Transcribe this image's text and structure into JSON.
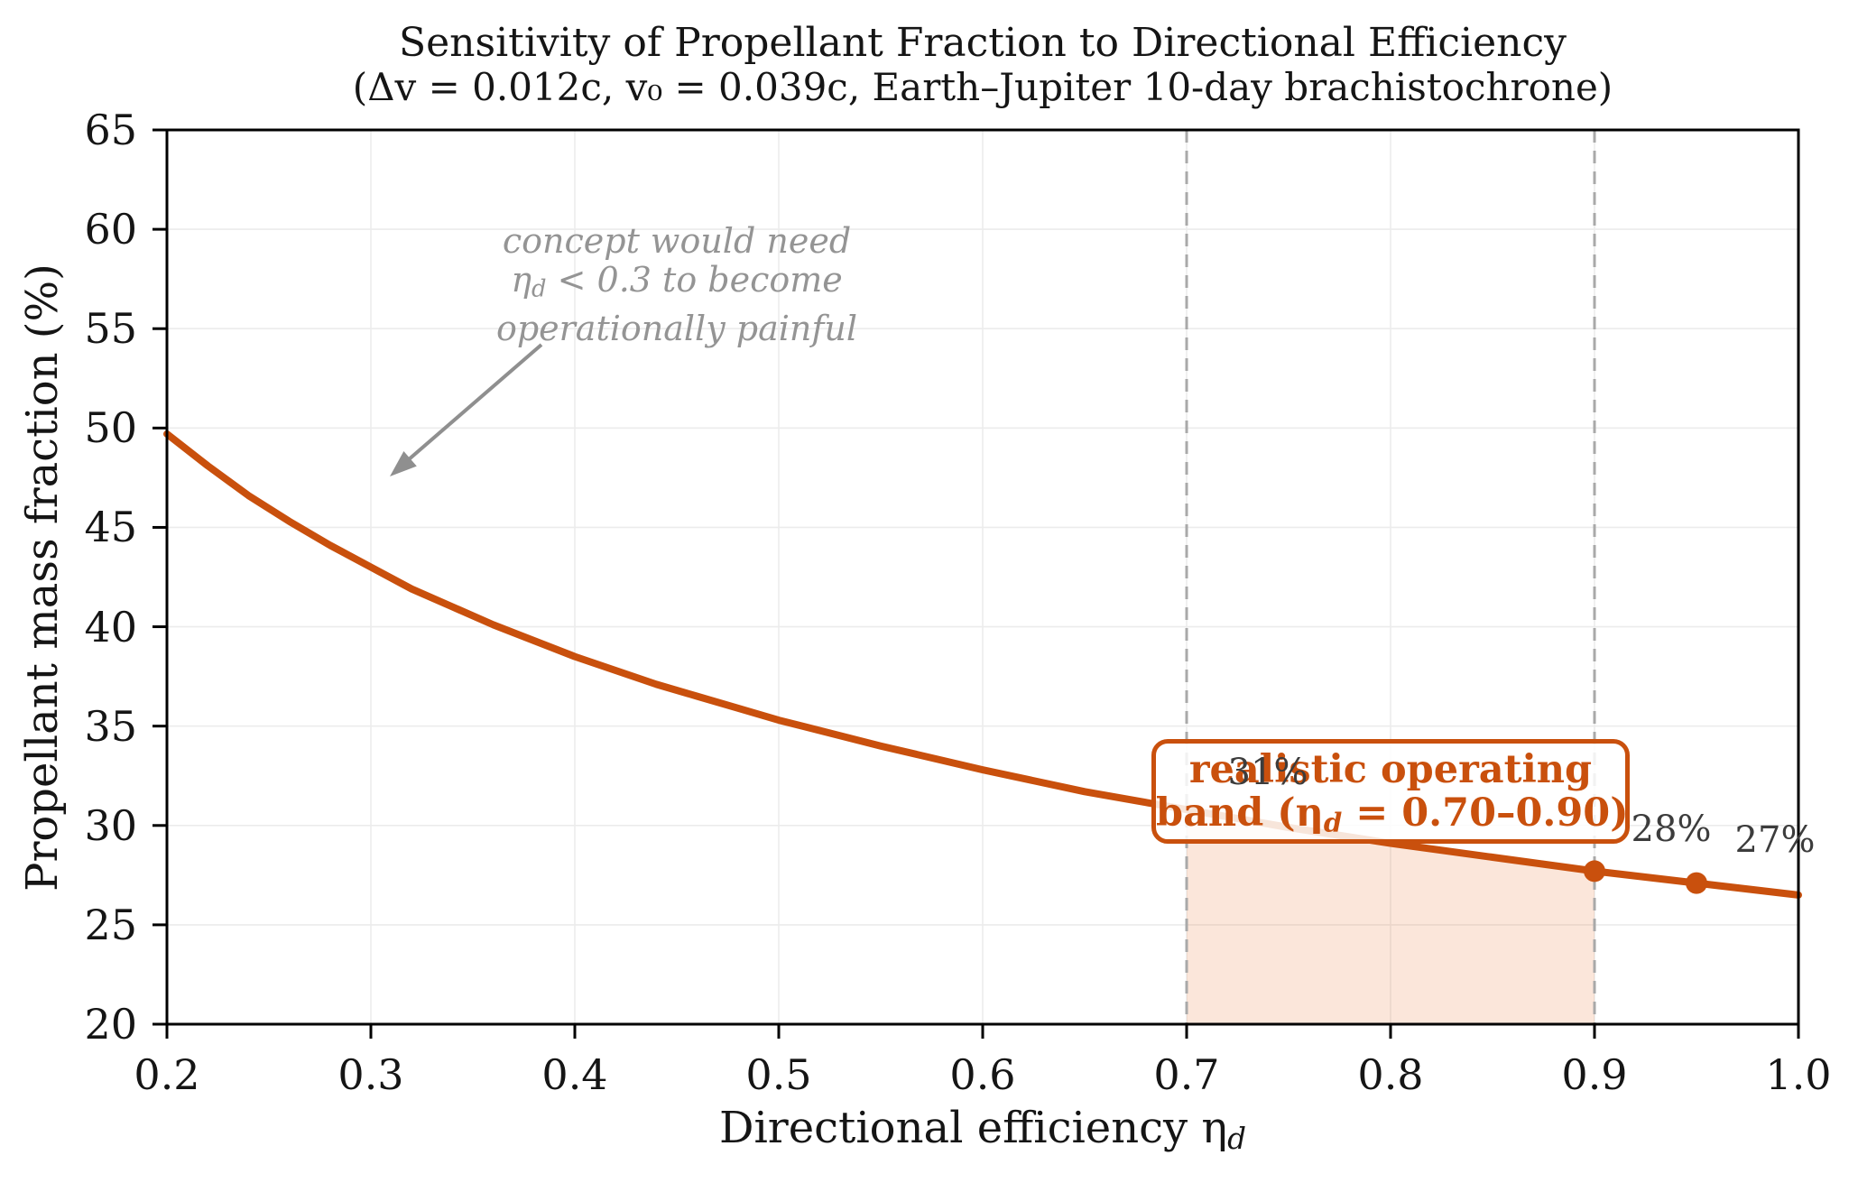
{
  "labels": {
    "title_line1": "Sensitivity of Propellant Fraction to Directional Efficiency",
    "title_line2": "(Δv = 0.012c, v₀ = 0.039c, Earth–Jupiter 10-day brachistochrone)",
    "ylabel": "Propellant mass fraction (%)",
    "xlabel_pre": "Directional efficiency η",
    "xlabel_sub": "d"
  },
  "annotations": {
    "note_line1": "concept would need",
    "note_line2_pre": "η",
    "note_line2_sub": "d",
    "note_line2_post": " < 0.3 to become",
    "note_line3": "operationally painful",
    "band_line1": "realistic operating",
    "band_line2_pre": "band (η",
    "band_line2_sub": "d",
    "band_line2_post": " = 0.70–0.90)"
  },
  "colors": {
    "curve": "#c9500d",
    "band_fill": "rgba(235,115,50,0.18)",
    "dashed_line": "#a9a9a9",
    "grid": "#ececec",
    "axis": "#000000",
    "note_text": "#949494",
    "arrow": "#8f8f8f",
    "point_label": "#3c3c3c",
    "box_border": "#c9500d",
    "box_text": "#c9500d",
    "title_text": "#151515"
  },
  "chart_data": {
    "type": "line",
    "title": "Sensitivity of Propellant Fraction to Directional Efficiency",
    "subtitle": "(Δv = 0.012c, v₀ = 0.039c, Earth–Jupiter 10-day brachistochrone)",
    "xlabel": "Directional efficiency η_d",
    "ylabel": "Propellant mass fraction (%)",
    "xlim": [
      0.2,
      1.0
    ],
    "ylim": [
      20,
      65
    ],
    "xticks": [
      "0.2",
      "0.3",
      "0.4",
      "0.5",
      "0.6",
      "0.7",
      "0.8",
      "0.9",
      "1.0"
    ],
    "yticks": [
      "20",
      "25",
      "30",
      "35",
      "40",
      "45",
      "50",
      "55",
      "60",
      "65"
    ],
    "grid": true,
    "legend": false,
    "series": [
      {
        "name": "Propellant mass fraction vs directional efficiency",
        "x": [
          0.2,
          0.22,
          0.24,
          0.26,
          0.28,
          0.3,
          0.32,
          0.34,
          0.36,
          0.38,
          0.4,
          0.42,
          0.44,
          0.46,
          0.48,
          0.5,
          0.55,
          0.6,
          0.65,
          0.7,
          0.75,
          0.8,
          0.85,
          0.9,
          0.95,
          1.0
        ],
        "y": [
          49.7,
          48.1,
          46.6,
          45.3,
          44.1,
          43.0,
          41.9,
          41.0,
          40.1,
          39.3,
          38.5,
          37.8,
          37.1,
          36.5,
          35.9,
          35.3,
          34.0,
          32.8,
          31.7,
          30.8,
          29.9,
          29.1,
          28.4,
          27.7,
          27.1,
          26.5
        ]
      }
    ],
    "shaded_band": {
      "x_start": 0.7,
      "x_end": 0.9
    },
    "dashed_vlines": [
      0.7,
      0.9
    ],
    "markers": [
      {
        "x": 0.9,
        "y": 27.7
      },
      {
        "x": 0.95,
        "y": 27.1
      }
    ],
    "point_labels": [
      {
        "x": 0.7,
        "y": 30.8,
        "text": "31%"
      },
      {
        "x": 0.9,
        "y": 27.7,
        "text": "28%"
      },
      {
        "x": 0.95,
        "y": 27.1,
        "text": "27%"
      }
    ]
  }
}
